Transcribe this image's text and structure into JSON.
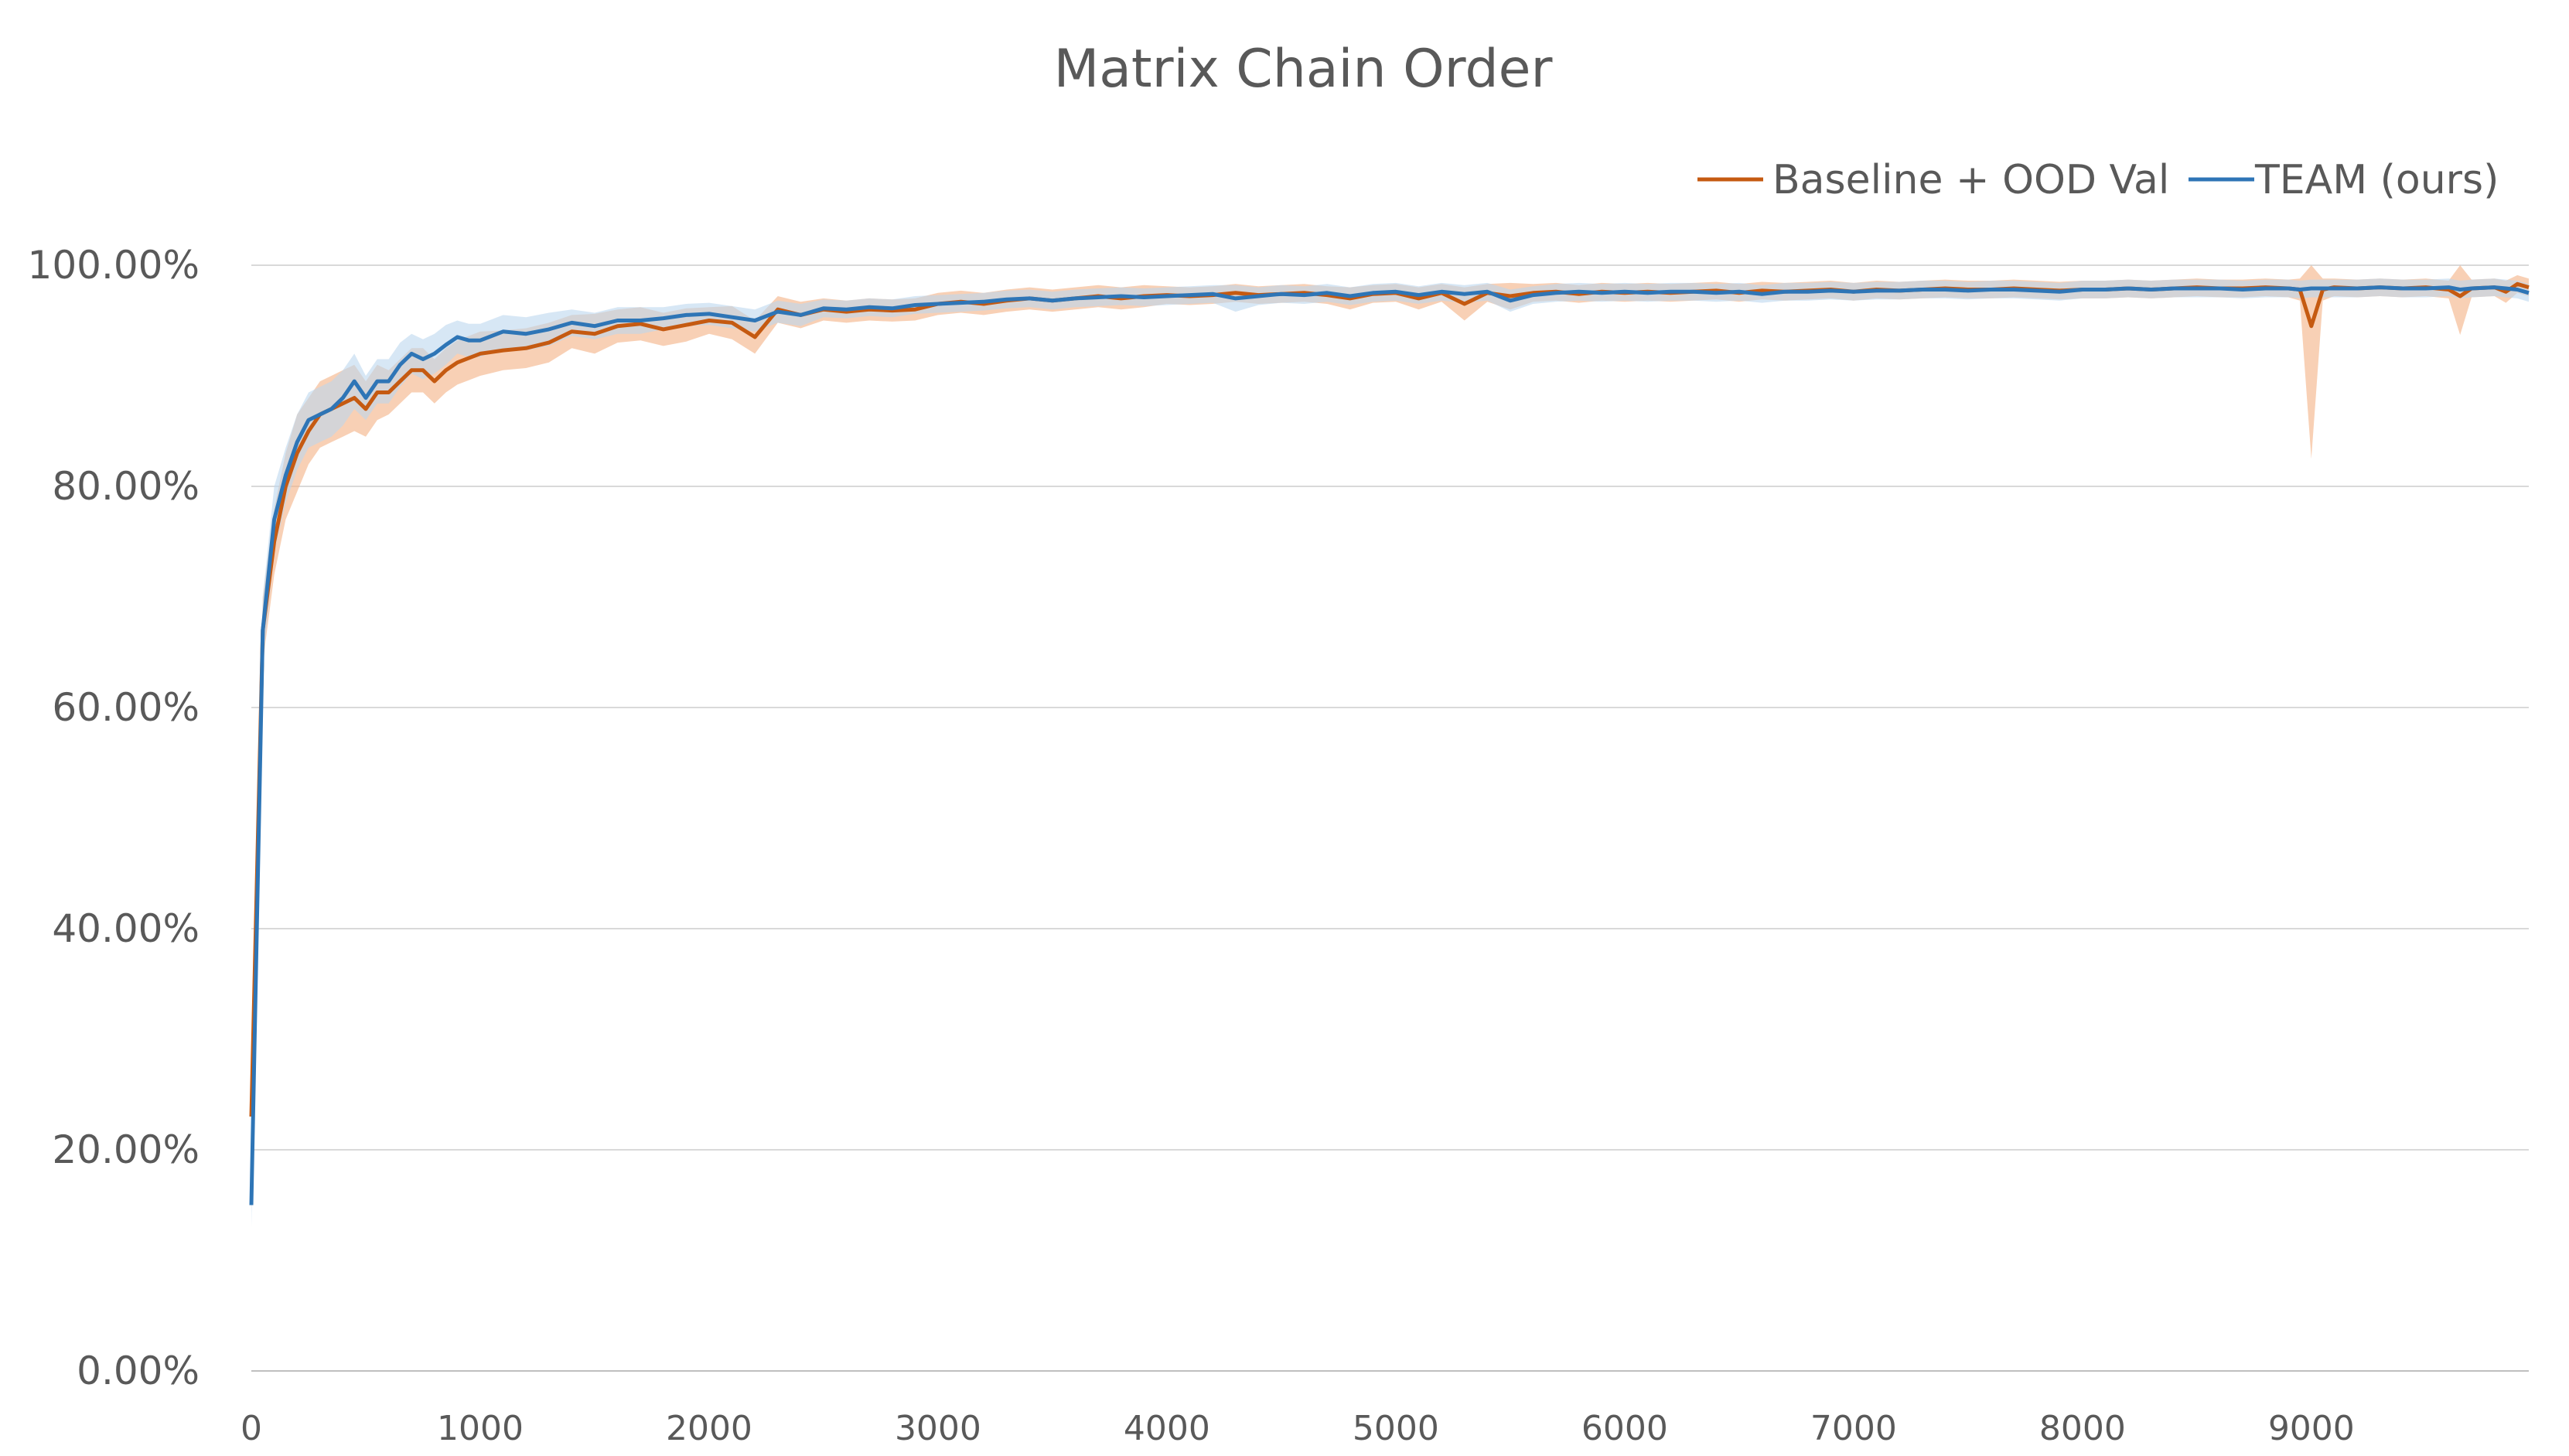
{
  "chart_data": {
    "type": "line",
    "title": "Matrix Chain Order",
    "xlabel": "",
    "ylabel": "",
    "xlim": [
      0,
      9950
    ],
    "ylim": [
      0,
      100
    ],
    "y_tick_labels": [
      "0.00%",
      "20.00%",
      "40.00%",
      "60.00%",
      "80.00%",
      "100.00%"
    ],
    "x_tick_labels": [
      "0",
      "1000",
      "2000",
      "3000",
      "4000",
      "5000",
      "6000",
      "7000",
      "8000",
      "9000"
    ],
    "x_ticks": [
      0,
      1000,
      2000,
      3000,
      4000,
      5000,
      6000,
      7000,
      8000,
      9000
    ],
    "y_ticks": [
      0,
      20,
      40,
      60,
      80,
      100
    ],
    "legend_position": "top-right",
    "series": [
      {
        "name": "Baseline + OOD Val",
        "color": "#C55A11",
        "band_color": "#F4B183",
        "points": [
          [
            0,
            23
          ],
          [
            50,
            67
          ],
          [
            100,
            75
          ],
          [
            150,
            80
          ],
          [
            200,
            83
          ],
          [
            250,
            85
          ],
          [
            300,
            86.5
          ],
          [
            350,
            87
          ],
          [
            400,
            87.5
          ],
          [
            450,
            88
          ],
          [
            500,
            87
          ],
          [
            550,
            88.5
          ],
          [
            600,
            88.5
          ],
          [
            650,
            89.5
          ],
          [
            700,
            90.5
          ],
          [
            750,
            90.5
          ],
          [
            800,
            89.5
          ],
          [
            850,
            90.5
          ],
          [
            900,
            91.2
          ],
          [
            950,
            91.6
          ],
          [
            1000,
            92
          ],
          [
            1100,
            92.3
          ],
          [
            1200,
            92.5
          ],
          [
            1300,
            93
          ],
          [
            1400,
            94
          ],
          [
            1500,
            93.8
          ],
          [
            1600,
            94.5
          ],
          [
            1700,
            94.7
          ],
          [
            1800,
            94.2
          ],
          [
            1900,
            94.6
          ],
          [
            2000,
            95
          ],
          [
            2100,
            94.8
          ],
          [
            2200,
            93.5
          ],
          [
            2300,
            96
          ],
          [
            2400,
            95.5
          ],
          [
            2500,
            96
          ],
          [
            2600,
            95.8
          ],
          [
            2700,
            96
          ],
          [
            2800,
            95.9
          ],
          [
            2900,
            96
          ],
          [
            3000,
            96.5
          ],
          [
            3100,
            96.7
          ],
          [
            3200,
            96.5
          ],
          [
            3300,
            96.8
          ],
          [
            3400,
            97
          ],
          [
            3500,
            96.8
          ],
          [
            3600,
            97
          ],
          [
            3700,
            97.2
          ],
          [
            3800,
            97
          ],
          [
            3900,
            97.2
          ],
          [
            4000,
            97.3
          ],
          [
            4100,
            97.2
          ],
          [
            4200,
            97.3
          ],
          [
            4300,
            97.5
          ],
          [
            4400,
            97.3
          ],
          [
            4500,
            97.4
          ],
          [
            4600,
            97.5
          ],
          [
            4700,
            97.3
          ],
          [
            4800,
            97
          ],
          [
            4900,
            97.4
          ],
          [
            5000,
            97.5
          ],
          [
            5100,
            97
          ],
          [
            5200,
            97.5
          ],
          [
            5300,
            96.5
          ],
          [
            5400,
            97.5
          ],
          [
            5500,
            97.2
          ],
          [
            5600,
            97.5
          ],
          [
            5700,
            97.6
          ],
          [
            5800,
            97.4
          ],
          [
            5900,
            97.6
          ],
          [
            6000,
            97.5
          ],
          [
            6100,
            97.6
          ],
          [
            6200,
            97.5
          ],
          [
            6300,
            97.6
          ],
          [
            6400,
            97.7
          ],
          [
            6500,
            97.5
          ],
          [
            6600,
            97.7
          ],
          [
            6700,
            97.6
          ],
          [
            6800,
            97.7
          ],
          [
            6900,
            97.8
          ],
          [
            7000,
            97.6
          ],
          [
            7100,
            97.8
          ],
          [
            7200,
            97.7
          ],
          [
            7300,
            97.8
          ],
          [
            7400,
            97.9
          ],
          [
            7500,
            97.8
          ],
          [
            7600,
            97.8
          ],
          [
            7700,
            97.9
          ],
          [
            7800,
            97.8
          ],
          [
            7900,
            97.7
          ],
          [
            8000,
            97.8
          ],
          [
            8100,
            97.8
          ],
          [
            8200,
            97.9
          ],
          [
            8300,
            97.8
          ],
          [
            8400,
            97.9
          ],
          [
            8500,
            98
          ],
          [
            8600,
            97.9
          ],
          [
            8700,
            97.9
          ],
          [
            8800,
            98
          ],
          [
            8900,
            97.9
          ],
          [
            8950,
            97.8
          ],
          [
            9000,
            94.5
          ],
          [
            9050,
            97.8
          ],
          [
            9100,
            98
          ],
          [
            9200,
            97.9
          ],
          [
            9300,
            98
          ],
          [
            9400,
            97.9
          ],
          [
            9500,
            98
          ],
          [
            9600,
            97.8
          ],
          [
            9650,
            97.2
          ],
          [
            9700,
            97.9
          ],
          [
            9800,
            98
          ],
          [
            9850,
            97.6
          ],
          [
            9900,
            98.3
          ],
          [
            9950,
            98
          ]
        ],
        "band": [
          2.5,
          3,
          3,
          3,
          3.5,
          3,
          3,
          3,
          3,
          3,
          2.5,
          2.5,
          2,
          2,
          2,
          2,
          2,
          2,
          2,
          2,
          2,
          1.8,
          1.8,
          1.8,
          1.5,
          1.8,
          1.5,
          1.5,
          1.5,
          1.5,
          1.2,
          1.5,
          1.5,
          1.2,
          1.2,
          1,
          1,
          1,
          1,
          1,
          1,
          1,
          1,
          1,
          1,
          1,
          1,
          1,
          1,
          1,
          0.8,
          0.8,
          0.8,
          0.8,
          0.8,
          0.8,
          0.8,
          0.8,
          1,
          0.8,
          0.8,
          1,
          0.8,
          1.5,
          0.8,
          1.2,
          0.8,
          0.8,
          0.8,
          0.8,
          0.8,
          0.8,
          0.8,
          0.8,
          0.8,
          0.8,
          0.8,
          0.8,
          0.8,
          0.8,
          0.8,
          0.8,
          0.8,
          0.8,
          0.8,
          0.8,
          0.8,
          0.8,
          0.8,
          0.8,
          0.8,
          0.8,
          0.8,
          0.8,
          0.8,
          0.8,
          0.8,
          0.8,
          0.8,
          0.8,
          1,
          12,
          1,
          0.8,
          0.8,
          0.8,
          0.8,
          0.8,
          0.8,
          3.5,
          0.8,
          0.8,
          1,
          0.8,
          0.8
        ]
      },
      {
        "name": "TEAM (ours)",
        "color": "#2E75B6",
        "band_color": "#BDD7EE",
        "points": [
          [
            0,
            15
          ],
          [
            50,
            67
          ],
          [
            100,
            77
          ],
          [
            150,
            81
          ],
          [
            200,
            84
          ],
          [
            250,
            86
          ],
          [
            300,
            86.5
          ],
          [
            350,
            87
          ],
          [
            400,
            88
          ],
          [
            450,
            89.5
          ],
          [
            500,
            88
          ],
          [
            550,
            89.5
          ],
          [
            600,
            89.5
          ],
          [
            650,
            91
          ],
          [
            700,
            92
          ],
          [
            750,
            91.5
          ],
          [
            800,
            92
          ],
          [
            850,
            92.8
          ],
          [
            900,
            93.5
          ],
          [
            950,
            93.2
          ],
          [
            1000,
            93.2
          ],
          [
            1100,
            94
          ],
          [
            1200,
            93.8
          ],
          [
            1300,
            94.2
          ],
          [
            1400,
            94.8
          ],
          [
            1500,
            94.5
          ],
          [
            1600,
            95
          ],
          [
            1700,
            95
          ],
          [
            1800,
            95.2
          ],
          [
            1900,
            95.5
          ],
          [
            2000,
            95.6
          ],
          [
            2100,
            95.3
          ],
          [
            2200,
            95
          ],
          [
            2300,
            95.8
          ],
          [
            2400,
            95.5
          ],
          [
            2500,
            96.1
          ],
          [
            2600,
            96
          ],
          [
            2700,
            96.2
          ],
          [
            2800,
            96.1
          ],
          [
            2900,
            96.4
          ],
          [
            3000,
            96.5
          ],
          [
            3100,
            96.6
          ],
          [
            3200,
            96.7
          ],
          [
            3300,
            96.9
          ],
          [
            3400,
            97
          ],
          [
            3500,
            96.8
          ],
          [
            3600,
            97
          ],
          [
            3700,
            97.1
          ],
          [
            3800,
            97.2
          ],
          [
            3900,
            97.1
          ],
          [
            4000,
            97.2
          ],
          [
            4100,
            97.3
          ],
          [
            4200,
            97.4
          ],
          [
            4300,
            97
          ],
          [
            4400,
            97.2
          ],
          [
            4500,
            97.4
          ],
          [
            4600,
            97.3
          ],
          [
            4700,
            97.5
          ],
          [
            4800,
            97.2
          ],
          [
            4900,
            97.5
          ],
          [
            5000,
            97.6
          ],
          [
            5100,
            97.3
          ],
          [
            5200,
            97.6
          ],
          [
            5300,
            97.4
          ],
          [
            5400,
            97.6
          ],
          [
            5500,
            96.8
          ],
          [
            5600,
            97.3
          ],
          [
            5700,
            97.5
          ],
          [
            5800,
            97.6
          ],
          [
            5900,
            97.5
          ],
          [
            6000,
            97.6
          ],
          [
            6100,
            97.5
          ],
          [
            6200,
            97.6
          ],
          [
            6300,
            97.6
          ],
          [
            6400,
            97.5
          ],
          [
            6500,
            97.6
          ],
          [
            6600,
            97.4
          ],
          [
            6700,
            97.6
          ],
          [
            6800,
            97.6
          ],
          [
            6900,
            97.7
          ],
          [
            7000,
            97.6
          ],
          [
            7100,
            97.7
          ],
          [
            7200,
            97.7
          ],
          [
            7300,
            97.8
          ],
          [
            7400,
            97.8
          ],
          [
            7500,
            97.7
          ],
          [
            7600,
            97.8
          ],
          [
            7700,
            97.8
          ],
          [
            7800,
            97.7
          ],
          [
            7900,
            97.6
          ],
          [
            8000,
            97.8
          ],
          [
            8100,
            97.8
          ],
          [
            8200,
            97.9
          ],
          [
            8300,
            97.8
          ],
          [
            8400,
            97.9
          ],
          [
            8500,
            97.9
          ],
          [
            8600,
            97.9
          ],
          [
            8700,
            97.8
          ],
          [
            8800,
            97.9
          ],
          [
            8900,
            97.9
          ],
          [
            8950,
            97.8
          ],
          [
            9000,
            97.9
          ],
          [
            9050,
            97.9
          ],
          [
            9100,
            97.9
          ],
          [
            9200,
            97.9
          ],
          [
            9300,
            98
          ],
          [
            9400,
            97.9
          ],
          [
            9500,
            97.9
          ],
          [
            9600,
            98
          ],
          [
            9650,
            97.8
          ],
          [
            9700,
            97.9
          ],
          [
            9800,
            98
          ],
          [
            9850,
            97.9
          ],
          [
            9900,
            97.8
          ],
          [
            9950,
            97.5
          ]
        ],
        "band": [
          2,
          3,
          3,
          2.5,
          2.5,
          2.5,
          2.5,
          2.5,
          2.5,
          2.5,
          2,
          2,
          2,
          2,
          1.8,
          1.8,
          1.8,
          1.8,
          1.5,
          1.5,
          1.5,
          1.5,
          1.5,
          1.5,
          1.2,
          1.2,
          1.2,
          1.2,
          1,
          1,
          1,
          1,
          1,
          1,
          1,
          0.8,
          0.8,
          0.8,
          0.8,
          0.8,
          0.8,
          0.8,
          0.8,
          0.8,
          0.8,
          0.8,
          0.8,
          0.8,
          0.8,
          0.8,
          0.8,
          0.8,
          0.8,
          1.2,
          0.8,
          0.8,
          0.8,
          0.8,
          0.8,
          0.8,
          0.8,
          0.8,
          0.8,
          0.8,
          0.8,
          1,
          0.8,
          0.8,
          0.8,
          0.8,
          0.8,
          0.8,
          0.8,
          0.8,
          0.8,
          0.8,
          0.8,
          0.8,
          0.8,
          0.8,
          0.8,
          0.8,
          0.8,
          0.8,
          0.8,
          0.8,
          0.8,
          0.8,
          0.8,
          0.8,
          0.8,
          0.8,
          0.8,
          0.8,
          0.8,
          0.8,
          0.8,
          0.8,
          0.8,
          0.8,
          0.8,
          0.8,
          0.8,
          0.8,
          0.8,
          0.8,
          0.8,
          0.8,
          0.8,
          0.8,
          0.8,
          0.8,
          0.8,
          0.8,
          0.8
        ]
      }
    ]
  }
}
